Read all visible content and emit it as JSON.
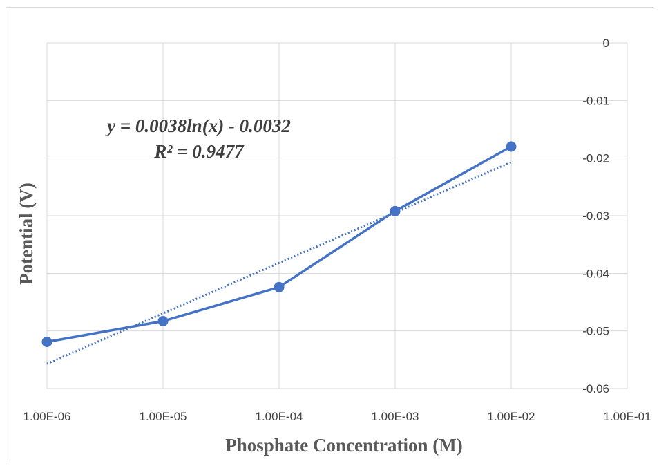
{
  "chart_data": {
    "type": "line",
    "x_scale": "log",
    "xlabel": "Phosphate Concentration (M)",
    "ylabel": "Potential (V)",
    "xlim": [
      1e-06,
      0.1
    ],
    "ylim": [
      -0.06,
      0
    ],
    "x_tick_values": [
      1e-06,
      1e-05,
      0.0001,
      0.001,
      0.01,
      0.1
    ],
    "x_tick_labels": [
      "1.00E-06",
      "1.00E-05",
      "1.00E-04",
      "1.00E-03",
      "1.00E-02",
      "1.00E-01"
    ],
    "y_tick_values": [
      0,
      -0.01,
      -0.02,
      -0.03,
      -0.04,
      -0.05,
      -0.06
    ],
    "y_tick_labels": [
      "0",
      "-0.01",
      "-0.02",
      "-0.03",
      "-0.04",
      "-0.05",
      "-0.06"
    ],
    "y_axis_position": "right",
    "grid": true,
    "series": [
      {
        "x": [
          1e-06,
          1e-05,
          0.0001,
          0.001,
          0.01
        ],
        "y": [
          -0.0519,
          -0.0483,
          -0.0424,
          -0.0292,
          -0.018
        ],
        "color": "#4472c4",
        "markers": true,
        "line_style": "solid"
      }
    ],
    "trendline": {
      "type": "logarithmic",
      "a": 0.0038,
      "b": -0.0032,
      "x_range": [
        1e-06,
        0.01
      ],
      "color": "#4472c4",
      "line_style": "dotted",
      "equation": "y = 0.0038ln(x) - 0.0032",
      "r_squared": "R² = 0.9477"
    }
  }
}
